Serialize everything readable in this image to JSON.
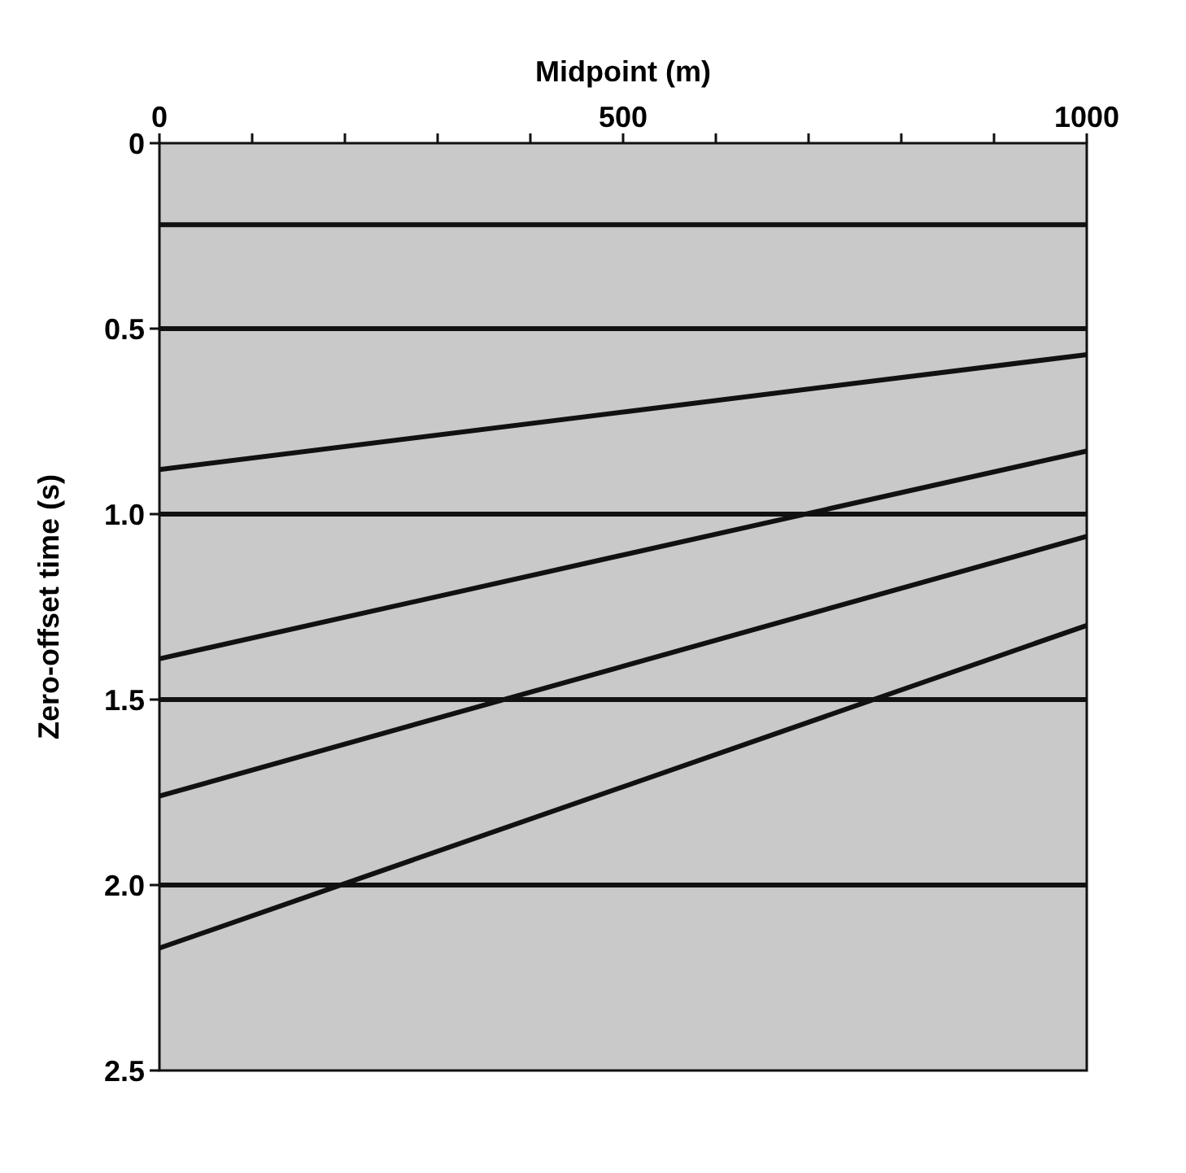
{
  "chart_data": {
    "type": "line",
    "xlabel": "Midpoint (m)",
    "ylabel": "Zero-offset time (s)",
    "xlim": [
      0,
      1000
    ],
    "ylim": [
      2.5,
      0
    ],
    "xticks": [
      0,
      {
        "value": 100,
        "label": null
      },
      {
        "value": 200,
        "label": null
      },
      {
        "value": 300,
        "label": null
      },
      {
        "value": 400,
        "label": null
      },
      500,
      {
        "value": 600,
        "label": null
      },
      {
        "value": 700,
        "label": null
      },
      {
        "value": 800,
        "label": null
      },
      {
        "value": 900,
        "label": null
      },
      1000
    ],
    "yticks": [
      0,
      0.5,
      {
        "value": 1,
        "label": "1.0"
      },
      1.5,
      {
        "value": 2,
        "label": "2.0"
      },
      2.5
    ],
    "grid": false,
    "marker": "none",
    "line_style": "solid",
    "x": [
      0,
      1000
    ],
    "series": [
      {
        "color": "#111111",
        "values": [
          0.22,
          0.22
        ]
      },
      {
        "color": "#111111",
        "values": [
          0.5,
          0.5
        ]
      },
      {
        "color": "#111111",
        "values": [
          0.88,
          0.57
        ]
      },
      {
        "color": "#111111",
        "values": [
          1.0,
          1.0
        ]
      },
      {
        "color": "#111111",
        "values": [
          1.39,
          0.83
        ]
      },
      {
        "color": "#111111",
        "values": [
          1.5,
          1.5
        ]
      },
      {
        "color": "#111111",
        "values": [
          1.76,
          1.06
        ]
      },
      {
        "color": "#111111",
        "values": [
          2.0,
          2.0
        ]
      },
      {
        "color": "#111111",
        "values": [
          2.17,
          1.3
        ]
      }
    ]
  }
}
